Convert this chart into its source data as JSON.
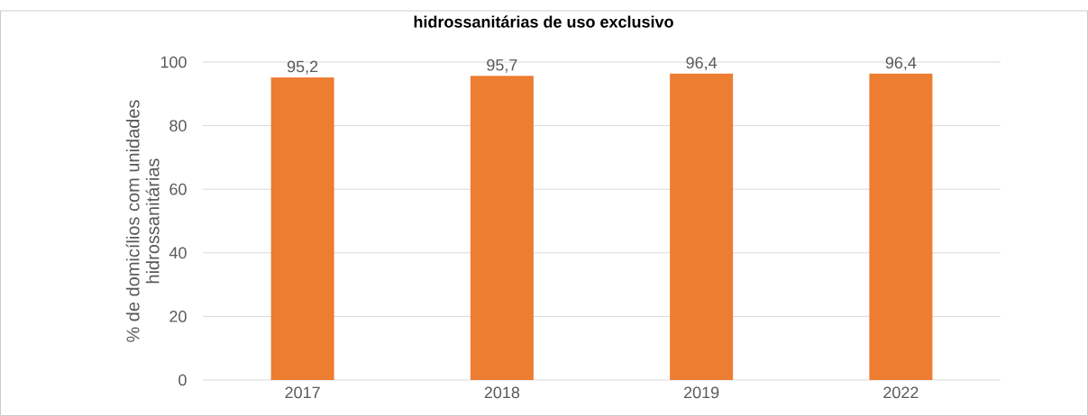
{
  "chart_data": {
    "type": "bar",
    "title": "hidrossanitárias de uso exclusivo",
    "ylabel": "% de domicílios com unidades hidrossanitárias",
    "categories": [
      "2017",
      "2018",
      "2019",
      "2022"
    ],
    "values": [
      95.2,
      95.7,
      96.4,
      96.4
    ],
    "value_labels": [
      "95,2",
      "95,7",
      "96,4",
      "96,4"
    ],
    "color": "#ed7d31",
    "ylim": [
      0,
      100
    ],
    "yticks": [
      0,
      20,
      40,
      60,
      80,
      100
    ],
    "grid": "y"
  }
}
